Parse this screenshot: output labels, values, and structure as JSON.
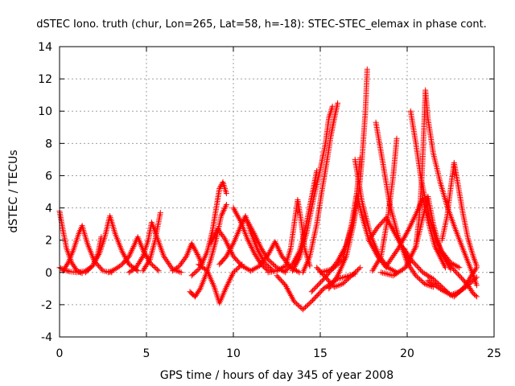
{
  "chart_data": {
    "type": "scatter",
    "title": "dSTEC Iono. truth (chur, Lon=265, Lat=58, h=-18): STEC-STEC_elemax in phase cont.",
    "xlabel": "GPS time / hours of day 345 of year 2008",
    "ylabel": "dSTEC  / TECUs",
    "xlim": [
      0,
      25
    ],
    "ylim": [
      -4,
      14
    ],
    "x_ticks": [
      "0",
      "5",
      "10",
      "15",
      "20",
      "25"
    ],
    "y_ticks": [
      "-4",
      "-2",
      "0",
      "2",
      "4",
      "6",
      "8",
      "10",
      "12",
      "14"
    ],
    "grid": true,
    "marker": "+",
    "color": "#ff0000",
    "series": [
      {
        "points": [
          [
            0.0,
            3.8
          ],
          [
            0.2,
            2.6
          ],
          [
            0.4,
            1.5
          ],
          [
            0.7,
            0.6
          ],
          [
            1.0,
            0.1
          ],
          [
            1.3,
            -0.05
          ]
        ]
      },
      {
        "points": [
          [
            0.0,
            0.3
          ],
          [
            0.3,
            0.15
          ],
          [
            0.6,
            0.05
          ],
          [
            1.0,
            0.0
          ],
          [
            1.5,
            0.1
          ],
          [
            1.9,
            0.4
          ],
          [
            2.2,
            1.1
          ],
          [
            2.4,
            2.2
          ]
        ]
      },
      {
        "points": [
          [
            0.2,
            0.1
          ],
          [
            0.5,
            0.6
          ],
          [
            0.8,
            1.4
          ],
          [
            1.1,
            2.4
          ],
          [
            1.3,
            2.9
          ],
          [
            1.6,
            1.8
          ],
          [
            2.0,
            0.7
          ],
          [
            2.5,
            0.1
          ],
          [
            3.0,
            0.0
          ]
        ]
      },
      {
        "points": [
          [
            1.5,
            0.0
          ],
          [
            1.9,
            0.4
          ],
          [
            2.3,
            1.2
          ],
          [
            2.6,
            2.2
          ],
          [
            2.9,
            3.5
          ],
          [
            3.2,
            2.4
          ],
          [
            3.6,
            1.3
          ],
          [
            4.0,
            0.5
          ],
          [
            4.5,
            0.1
          ]
        ]
      },
      {
        "points": [
          [
            2.8,
            0.0
          ],
          [
            3.2,
            0.2
          ],
          [
            3.6,
            0.5
          ],
          [
            4.0,
            1.0
          ],
          [
            4.3,
            1.7
          ],
          [
            4.5,
            2.2
          ],
          [
            4.8,
            1.4
          ],
          [
            5.2,
            0.6
          ],
          [
            5.7,
            0.1
          ]
        ]
      },
      {
        "points": [
          [
            4.0,
            0.0
          ],
          [
            4.4,
            0.3
          ],
          [
            4.8,
            1.0
          ],
          [
            5.1,
            2.0
          ],
          [
            5.3,
            3.1
          ],
          [
            5.6,
            2.2
          ],
          [
            6.0,
            1.0
          ],
          [
            6.5,
            0.2
          ],
          [
            7.0,
            0.0
          ]
        ]
      },
      {
        "points": [
          [
            4.8,
            0.1
          ],
          [
            5.2,
            0.8
          ],
          [
            5.5,
            2.0
          ],
          [
            5.8,
            3.7
          ]
        ]
      },
      {
        "points": [
          [
            6.5,
            0.1
          ],
          [
            6.9,
            0.4
          ],
          [
            7.3,
            1.0
          ],
          [
            7.6,
            1.8
          ],
          [
            7.9,
            1.2
          ],
          [
            8.2,
            0.5
          ]
        ]
      },
      {
        "points": [
          [
            7.5,
            -1.2
          ],
          [
            7.8,
            -1.5
          ],
          [
            8.1,
            -1.0
          ],
          [
            8.4,
            -0.2
          ],
          [
            8.7,
            0.8
          ],
          [
            9.0,
            2.0
          ],
          [
            9.3,
            3.5
          ],
          [
            9.6,
            4.2
          ]
        ]
      },
      {
        "points": [
          [
            7.6,
            -0.2
          ],
          [
            8.1,
            0.3
          ],
          [
            8.5,
            1.3
          ],
          [
            8.8,
            2.6
          ],
          [
            9.0,
            3.9
          ],
          [
            9.2,
            5.2
          ],
          [
            9.4,
            5.6
          ],
          [
            9.6,
            4.9
          ]
        ]
      },
      {
        "points": [
          [
            8.0,
            0.5
          ],
          [
            8.5,
            0.1
          ],
          [
            8.9,
            -0.9
          ],
          [
            9.2,
            -1.9
          ],
          [
            9.6,
            -0.9
          ],
          [
            10.0,
            0.0
          ],
          [
            10.5,
            0.5
          ]
        ]
      },
      {
        "points": [
          [
            8.7,
            1.8
          ],
          [
            9.1,
            2.7
          ],
          [
            9.5,
            2.1
          ],
          [
            10.0,
            1.0
          ],
          [
            10.5,
            0.4
          ],
          [
            11.0,
            0.1
          ]
        ]
      },
      {
        "points": [
          [
            9.2,
            0.5
          ],
          [
            9.6,
            1.0
          ],
          [
            10.0,
            1.8
          ],
          [
            10.4,
            2.8
          ],
          [
            10.7,
            3.5
          ],
          [
            11.0,
            2.5
          ],
          [
            11.4,
            1.4
          ],
          [
            11.8,
            0.6
          ],
          [
            12.3,
            0.1
          ]
        ]
      },
      {
        "points": [
          [
            10.0,
            4.0
          ],
          [
            10.4,
            3.2
          ],
          [
            10.8,
            2.1
          ],
          [
            11.2,
            1.2
          ],
          [
            11.6,
            0.5
          ],
          [
            12.0,
            0.1
          ]
        ]
      },
      {
        "points": [
          [
            10.8,
            3.2
          ],
          [
            11.2,
            2.4
          ],
          [
            11.6,
            1.5
          ],
          [
            12.0,
            0.8
          ],
          [
            12.5,
            0.3
          ],
          [
            13.0,
            0.0
          ]
        ]
      },
      {
        "points": [
          [
            11.0,
            0.1
          ],
          [
            11.5,
            0.4
          ],
          [
            12.0,
            1.1
          ],
          [
            12.4,
            1.9
          ],
          [
            12.8,
            1.0
          ],
          [
            13.3,
            0.3
          ],
          [
            13.8,
            0.0
          ]
        ]
      },
      {
        "points": [
          [
            12.0,
            0.0
          ],
          [
            12.5,
            0.1
          ],
          [
            13.0,
            0.4
          ],
          [
            13.3,
            1.5
          ],
          [
            13.5,
            3.0
          ],
          [
            13.7,
            4.5
          ],
          [
            13.9,
            3.2
          ],
          [
            14.1,
            1.5
          ],
          [
            14.4,
            0.4
          ]
        ]
      },
      {
        "points": [
          [
            12.5,
            -0.2
          ],
          [
            13.0,
            -0.8
          ],
          [
            13.5,
            -1.8
          ],
          [
            14.0,
            -2.3
          ],
          [
            14.5,
            -1.8
          ],
          [
            15.2,
            -1.0
          ],
          [
            16.0,
            -0.4
          ],
          [
            17.0,
            -0.1
          ]
        ]
      },
      {
        "points": [
          [
            13.0,
            0.1
          ],
          [
            13.4,
            0.5
          ],
          [
            13.8,
            1.3
          ],
          [
            14.1,
            2.5
          ],
          [
            14.4,
            4.1
          ],
          [
            14.6,
            5.2
          ],
          [
            14.8,
            6.3
          ]
        ]
      },
      {
        "points": [
          [
            13.4,
            0.1
          ],
          [
            13.8,
            0.9
          ],
          [
            14.2,
            2.4
          ],
          [
            14.6,
            4.5
          ],
          [
            15.0,
            6.4
          ],
          [
            15.3,
            8.0
          ],
          [
            15.5,
            9.6
          ],
          [
            15.7,
            10.3
          ]
        ]
      },
      {
        "points": [
          [
            14.0,
            0.0
          ],
          [
            14.4,
            1.0
          ],
          [
            14.8,
            3.0
          ],
          [
            15.1,
            5.1
          ],
          [
            15.4,
            7.0
          ],
          [
            15.6,
            8.4
          ],
          [
            15.8,
            9.5
          ],
          [
            16.0,
            10.5
          ]
        ]
      },
      {
        "points": [
          [
            14.8,
            0.3
          ],
          [
            15.3,
            -0.3
          ],
          [
            15.8,
            -0.9
          ],
          [
            16.3,
            -0.7
          ],
          [
            16.8,
            -0.2
          ],
          [
            17.3,
            0.3
          ]
        ]
      },
      {
        "points": [
          [
            15.5,
            -1.0
          ],
          [
            16.0,
            -0.2
          ],
          [
            16.5,
            1.0
          ],
          [
            16.9,
            2.9
          ],
          [
            17.2,
            4.8
          ],
          [
            17.4,
            7.0
          ],
          [
            17.6,
            10.0
          ],
          [
            17.7,
            12.6
          ]
        ]
      },
      {
        "points": [
          [
            14.5,
            -1.2
          ],
          [
            15.3,
            -0.3
          ],
          [
            16.0,
            0.7
          ],
          [
            16.5,
            1.7
          ],
          [
            16.9,
            3.2
          ],
          [
            17.1,
            4.9
          ],
          [
            17.3,
            7.1
          ]
        ]
      },
      {
        "points": [
          [
            15.0,
            0.0
          ],
          [
            15.7,
            0.2
          ],
          [
            16.3,
            0.8
          ],
          [
            16.8,
            3.0
          ],
          [
            17.1,
            4.9
          ],
          [
            17.4,
            3.5
          ],
          [
            17.8,
            2.0
          ],
          [
            18.3,
            1.0
          ],
          [
            18.8,
            0.3
          ]
        ]
      },
      {
        "points": [
          [
            17.0,
            7.0
          ],
          [
            17.4,
            4.4
          ],
          [
            17.9,
            2.3
          ],
          [
            18.4,
            1.0
          ],
          [
            18.9,
            0.3
          ],
          [
            19.4,
            0.0
          ]
        ]
      },
      {
        "points": [
          [
            17.8,
            2.0
          ],
          [
            18.3,
            2.8
          ],
          [
            18.8,
            3.4
          ],
          [
            19.2,
            2.6
          ],
          [
            19.7,
            1.6
          ],
          [
            20.2,
            0.6
          ]
        ]
      },
      {
        "points": [
          [
            18.2,
            9.3
          ],
          [
            18.6,
            6.8
          ],
          [
            19.0,
            4.2
          ],
          [
            19.5,
            2.2
          ],
          [
            20.0,
            0.6
          ],
          [
            20.5,
            -0.2
          ],
          [
            21.0,
            -0.7
          ],
          [
            21.5,
            -0.9
          ]
        ]
      },
      {
        "points": [
          [
            18.0,
            0.1
          ],
          [
            18.5,
            1.0
          ],
          [
            18.9,
            3.5
          ],
          [
            19.2,
            6.0
          ],
          [
            19.4,
            8.3
          ]
        ]
      },
      {
        "points": [
          [
            18.5,
            0.0
          ],
          [
            19.2,
            -0.2
          ],
          [
            19.9,
            0.3
          ],
          [
            20.5,
            1.6
          ],
          [
            20.9,
            3.4
          ],
          [
            21.2,
            4.7
          ],
          [
            21.5,
            3.0
          ],
          [
            21.9,
            1.4
          ],
          [
            22.5,
            0.2
          ]
        ]
      },
      {
        "points": [
          [
            18.8,
            0.4
          ],
          [
            19.5,
            1.5
          ],
          [
            20.1,
            2.7
          ],
          [
            20.5,
            3.6
          ],
          [
            20.9,
            4.6
          ],
          [
            21.2,
            3.2
          ],
          [
            21.6,
            1.6
          ],
          [
            22.2,
            0.3
          ]
        ]
      },
      {
        "points": [
          [
            19.8,
            1.5
          ],
          [
            20.3,
            0.7
          ],
          [
            20.9,
            0.0
          ],
          [
            21.5,
            -0.4
          ],
          [
            22.0,
            -0.9
          ],
          [
            22.5,
            -1.4
          ],
          [
            23.0,
            -1.2
          ],
          [
            23.5,
            -0.8
          ],
          [
            24.0,
            -0.3
          ]
        ]
      },
      {
        "points": [
          [
            20.2,
            10.0
          ],
          [
            20.5,
            8.0
          ],
          [
            20.8,
            5.8
          ],
          [
            21.2,
            3.7
          ],
          [
            21.6,
            2.2
          ],
          [
            22.0,
            1.3
          ],
          [
            22.5,
            0.6
          ],
          [
            23.0,
            0.3
          ]
        ]
      },
      {
        "points": [
          [
            20.5,
            1.6
          ],
          [
            20.7,
            3.5
          ],
          [
            20.85,
            6.0
          ],
          [
            20.95,
            8.5
          ],
          [
            21.05,
            11.3
          ],
          [
            21.2,
            9.5
          ],
          [
            21.5,
            7.4
          ],
          [
            21.9,
            5.6
          ],
          [
            22.3,
            4.1
          ],
          [
            22.8,
            2.6
          ],
          [
            23.3,
            1.2
          ],
          [
            23.7,
            0.1
          ],
          [
            24.0,
            -0.8
          ]
        ]
      },
      {
        "points": [
          [
            22.0,
            2.0
          ],
          [
            22.3,
            3.5
          ],
          [
            22.5,
            5.2
          ],
          [
            22.7,
            6.8
          ],
          [
            22.9,
            5.6
          ],
          [
            23.2,
            3.7
          ],
          [
            23.5,
            2.1
          ],
          [
            23.8,
            1.0
          ],
          [
            24.0,
            0.4
          ]
        ]
      },
      {
        "points": [
          [
            21.2,
            -0.5
          ],
          [
            22.0,
            -1.1
          ],
          [
            22.7,
            -1.5
          ],
          [
            23.3,
            -0.9
          ],
          [
            23.7,
            -0.2
          ],
          [
            24.0,
            0.3
          ]
        ]
      },
      {
        "points": [
          [
            21.8,
            1.5
          ],
          [
            22.4,
            0.5
          ],
          [
            23.0,
            -0.2
          ],
          [
            23.5,
            -0.8
          ],
          [
            23.8,
            -1.3
          ],
          [
            24.0,
            -1.5
          ]
        ]
      }
    ]
  }
}
